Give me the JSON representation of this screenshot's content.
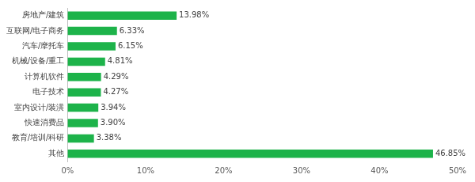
{
  "chart_data": {
    "type": "bar",
    "orientation": "horizontal",
    "categories": [
      "房地产/建筑",
      "互联网/电子商务",
      "汽车/摩托车",
      "机械/设备/重工",
      "计算机软件",
      "电子技术",
      "室内设计/装潢",
      "快速消费品",
      "教育/培训/科研",
      "其他"
    ],
    "values": [
      13.98,
      6.33,
      6.15,
      4.81,
      4.29,
      4.27,
      3.94,
      3.9,
      3.38,
      46.85
    ],
    "value_labels": [
      "13.98%",
      "6.33%",
      "6.15%",
      "4.81%",
      "4.29%",
      "4.27%",
      "3.94%",
      "3.90%",
      "3.38%",
      "46.85%"
    ],
    "data_labels": true,
    "color": "#1db34a",
    "xlim": [
      0,
      50
    ],
    "xticks": [
      {
        "value": 0,
        "label": "0%"
      },
      {
        "value": 10,
        "label": "10%"
      },
      {
        "value": 20,
        "label": "20%"
      },
      {
        "value": 30,
        "label": "30%"
      },
      {
        "value": 40,
        "label": "40%"
      },
      {
        "value": 50,
        "label": "50%"
      }
    ],
    "grid": false
  }
}
